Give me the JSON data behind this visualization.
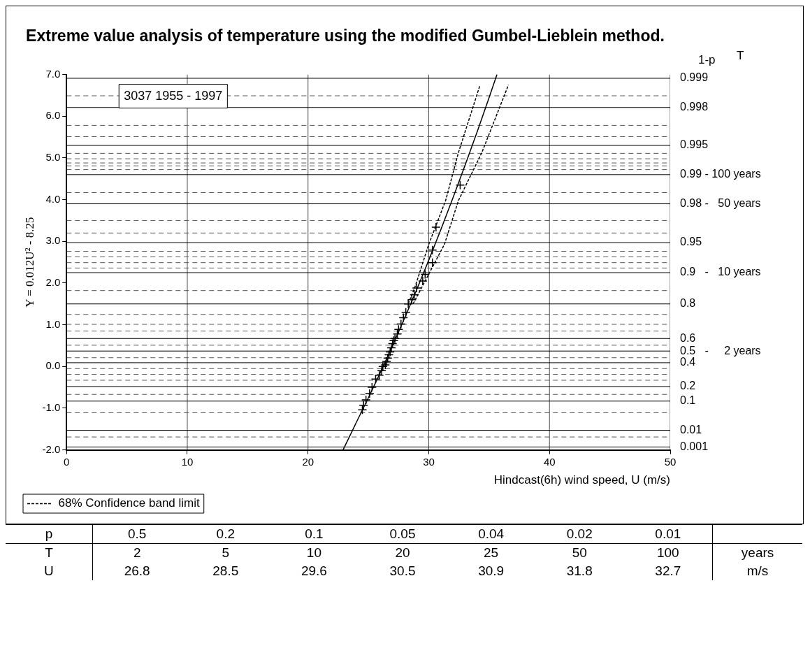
{
  "chart_data": [
    {
      "type": "scatter",
      "title": "Extreme value analysis of temperature using the modified Gumbel-Lieblein method.",
      "xlabel": "Hindcast(6h) wind speed, U (m/s)",
      "ylabel": "Y = 0.012U² - 8.25",
      "annotations": [
        "3037 1955 - 1997",
        "1-p",
        "T",
        "0.999",
        "0.998",
        "0.995",
        "0.99 - 100 years",
        "0.98 -   50 years",
        "0.95",
        "0.9   -   10 years",
        "0.8",
        "0.6",
        "0.5   -     2 years",
        "0.4",
        "0.2",
        "0.1",
        "0.01",
        "0.001"
      ],
      "xlim": [
        0,
        50
      ],
      "xticks": [
        0,
        10,
        20,
        30,
        40,
        50
      ],
      "ylim": [
        -2,
        7
      ],
      "yticks": [
        {
          "value": -2,
          "label": "-2.0"
        },
        {
          "value": -1,
          "label": "-1.0"
        },
        {
          "value": 0,
          "label": "0.0"
        },
        {
          "value": 1,
          "label": "1.0"
        },
        {
          "value": 2,
          "label": "2.0"
        },
        {
          "value": 3,
          "label": "3.0"
        },
        {
          "value": 4,
          "label": "4.0"
        },
        {
          "value": 5,
          "label": "5.0"
        },
        {
          "value": 6,
          "label": "6.0"
        },
        {
          "value": 7,
          "label": "7.0"
        }
      ],
      "ref_lines": [
        {
          "axis": "y",
          "value": 6.91,
          "color": "#000000",
          "line_style": "solid"
        },
        {
          "axis": "y",
          "value": 6.49,
          "color": "#555555",
          "line_style": "dashed"
        },
        {
          "axis": "y",
          "value": 6.21,
          "color": "#000000",
          "line_style": "solid"
        },
        {
          "axis": "y",
          "value": 5.78,
          "color": "#555555",
          "line_style": "dashed"
        },
        {
          "axis": "y",
          "value": 5.51,
          "color": "#555555",
          "line_style": "dashed"
        },
        {
          "axis": "y",
          "value": 5.3,
          "color": "#000000",
          "line_style": "solid"
        },
        {
          "axis": "y",
          "value": 5.11,
          "color": "#555555",
          "line_style": "dashed"
        },
        {
          "axis": "y",
          "value": 4.98,
          "color": "#555555",
          "line_style": "dashed"
        },
        {
          "axis": "y",
          "value": 4.88,
          "color": "#555555",
          "line_style": "dashed"
        },
        {
          "axis": "y",
          "value": 4.81,
          "color": "#555555",
          "line_style": "dashed"
        },
        {
          "axis": "y",
          "value": 4.72,
          "color": "#555555",
          "line_style": "dashed"
        },
        {
          "axis": "y",
          "value": 4.6,
          "color": "#000000",
          "line_style": "solid"
        },
        {
          "axis": "y",
          "value": 4.17,
          "color": "#555555",
          "line_style": "dashed"
        },
        {
          "axis": "y",
          "value": 3.9,
          "color": "#000000",
          "line_style": "solid"
        },
        {
          "axis": "y",
          "value": 3.5,
          "color": "#555555",
          "line_style": "dashed"
        },
        {
          "axis": "y",
          "value": 3.2,
          "color": "#555555",
          "line_style": "dashed"
        },
        {
          "axis": "y",
          "value": 2.97,
          "color": "#000000",
          "line_style": "solid"
        },
        {
          "axis": "y",
          "value": 2.76,
          "color": "#555555",
          "line_style": "dashed"
        },
        {
          "axis": "y",
          "value": 2.63,
          "color": "#555555",
          "line_style": "dashed"
        },
        {
          "axis": "y",
          "value": 2.49,
          "color": "#555555",
          "line_style": "dashed"
        },
        {
          "axis": "y",
          "value": 2.36,
          "color": "#555555",
          "line_style": "dashed"
        },
        {
          "axis": "y",
          "value": 2.25,
          "color": "#000000",
          "line_style": "solid"
        },
        {
          "axis": "y",
          "value": 1.82,
          "color": "#555555",
          "line_style": "dashed"
        },
        {
          "axis": "y",
          "value": 1.5,
          "color": "#000000",
          "line_style": "solid"
        },
        {
          "axis": "y",
          "value": 1.25,
          "color": "#555555",
          "line_style": "dashed"
        },
        {
          "axis": "y",
          "value": 1.01,
          "color": "#555555",
          "line_style": "dashed"
        },
        {
          "axis": "y",
          "value": 0.85,
          "color": "#555555",
          "line_style": "dashed"
        },
        {
          "axis": "y",
          "value": 0.67,
          "color": "#000000",
          "line_style": "solid"
        },
        {
          "axis": "y",
          "value": 0.51,
          "color": "#555555",
          "line_style": "dashed"
        },
        {
          "axis": "y",
          "value": 0.37,
          "color": "#000000",
          "line_style": "solid"
        },
        {
          "axis": "y",
          "value": 0.21,
          "color": "#555555",
          "line_style": "dashed"
        },
        {
          "axis": "y",
          "value": 0.09,
          "color": "#000000",
          "line_style": "solid"
        },
        {
          "axis": "y",
          "value": -0.05,
          "color": "#555555",
          "line_style": "dashed"
        },
        {
          "axis": "y",
          "value": -0.19,
          "color": "#555555",
          "line_style": "dashed"
        },
        {
          "axis": "y",
          "value": -0.33,
          "color": "#555555",
          "line_style": "dashed"
        },
        {
          "axis": "y",
          "value": -0.48,
          "color": "#000000",
          "line_style": "solid"
        },
        {
          "axis": "y",
          "value": -0.67,
          "color": "#555555",
          "line_style": "dashed"
        },
        {
          "axis": "y",
          "value": -0.83,
          "color": "#000000",
          "line_style": "solid"
        },
        {
          "axis": "y",
          "value": -1.11,
          "color": "#555555",
          "line_style": "dashed"
        },
        {
          "axis": "y",
          "value": -1.53,
          "color": "#000000",
          "line_style": "solid"
        },
        {
          "axis": "y",
          "value": -1.69,
          "color": "#555555",
          "line_style": "dashed"
        },
        {
          "axis": "y",
          "value": -1.93,
          "color": "#000000",
          "line_style": "solid"
        }
      ],
      "grid": "x",
      "legend": "bottom left",
      "series": [
        {
          "type": "scatter",
          "color": "#000000",
          "marker": "cross",
          "x": [
            24.5,
            24.6,
            24.8,
            25.1,
            25.3,
            25.6,
            25.9,
            26.1,
            26.2,
            26.4,
            26.5,
            26.6,
            26.7,
            26.8,
            26.9,
            27.0,
            27.1,
            27.2,
            27.4,
            27.5,
            27.7,
            27.9,
            28.1,
            28.3,
            28.6,
            28.8,
            29.0,
            29.5,
            29.7,
            30.3,
            30.3,
            30.6,
            32.6
          ],
          "values": [
            -1.04,
            -0.93,
            -0.8,
            -0.65,
            -0.5,
            -0.3,
            -0.21,
            -0.1,
            0.0,
            0.04,
            0.12,
            0.2,
            0.28,
            0.35,
            0.45,
            0.55,
            0.62,
            0.67,
            0.78,
            0.89,
            1.02,
            1.17,
            1.3,
            1.5,
            1.6,
            1.72,
            1.88,
            2.05,
            2.21,
            2.49,
            2.79,
            3.34,
            4.35
          ]
        },
        {
          "type": "line",
          "color": "#000000",
          "marker": "none",
          "line_style": "solid",
          "x": [
            22.9,
            24,
            25,
            26,
            27,
            28,
            29,
            30,
            31,
            32,
            33,
            34,
            35,
            35.65
          ],
          "values": [
            -2.0,
            -1.34,
            -0.75,
            -0.14,
            0.5,
            1.16,
            1.84,
            2.55,
            3.28,
            4.04,
            4.82,
            5.62,
            6.45,
            7.0
          ]
        },
        {
          "type": "line",
          "name": "68% Confidence band limit",
          "color": "#000000",
          "marker": "none",
          "line_style": "dashed",
          "x": [
            28.3,
            28.9,
            30.0,
            31.4,
            32.46,
            34.25
          ],
          "values": [
            1.5,
            1.94,
            2.93,
            3.98,
            5.13,
            6.75
          ]
        },
        {
          "type": "line",
          "color": "#000000",
          "marker": "none",
          "line_style": "dashed",
          "x": [
            28.7,
            29.5,
            31.3,
            32.46,
            34.4,
            36.6
          ],
          "values": [
            1.5,
            1.94,
            2.93,
            3.98,
            5.13,
            6.75
          ]
        }
      ]
    },
    {
      "type": "other",
      "y_categories": [
        "p",
        "T",
        "U"
      ],
      "cell_labels": [
        [
          "0.5",
          "0.2",
          "0.1",
          "0.05",
          "0.04",
          "0.02",
          "0.01",
          null
        ],
        [
          "2",
          "5",
          "10",
          "20",
          "25",
          "50",
          "100",
          "years"
        ],
        [
          "26.8",
          "28.5",
          "29.6",
          "30.5",
          "30.9",
          "31.8",
          "32.7",
          "m/s"
        ]
      ]
    }
  ]
}
